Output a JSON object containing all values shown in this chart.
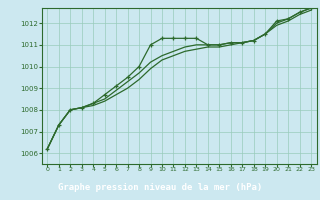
{
  "title": "Graphe pression niveau de la mer (hPa)",
  "bg_color": "#cce8f0",
  "plot_bg_color": "#cce8f0",
  "grid_color": "#99ccbb",
  "line_color": "#2d6a2d",
  "marker_color": "#2d6a2d",
  "title_bg_color": "#2d6a2d",
  "title_text_color": "#ffffff",
  "xlim": [
    -0.5,
    23.5
  ],
  "ylim": [
    1005.5,
    1012.7
  ],
  "xticks": [
    0,
    1,
    2,
    3,
    4,
    5,
    6,
    7,
    8,
    9,
    10,
    11,
    12,
    13,
    14,
    15,
    16,
    17,
    18,
    19,
    20,
    21,
    22,
    23
  ],
  "yticks": [
    1006,
    1007,
    1008,
    1009,
    1010,
    1011,
    1012
  ],
  "series1_x": [
    0,
    1,
    2,
    3,
    4,
    5,
    6,
    7,
    8,
    9,
    10,
    11,
    12,
    13,
    14,
    15,
    16,
    17,
    18,
    19,
    20,
    21,
    22,
    23
  ],
  "series1_y": [
    1006.2,
    1007.3,
    1008.0,
    1008.1,
    1008.3,
    1008.7,
    1009.1,
    1009.5,
    1010.0,
    1011.0,
    1011.3,
    1011.3,
    1011.3,
    1011.3,
    1011.0,
    1011.0,
    1011.1,
    1011.1,
    1011.2,
    1011.5,
    1012.1,
    1012.2,
    1012.5,
    1012.7
  ],
  "series2_x": [
    0,
    1,
    2,
    3,
    4,
    5,
    6,
    7,
    8,
    9,
    10,
    11,
    12,
    13,
    14,
    15,
    16,
    17,
    18,
    19,
    20,
    21,
    22,
    23
  ],
  "series2_y": [
    1006.2,
    1007.3,
    1008.0,
    1008.1,
    1008.3,
    1008.5,
    1008.9,
    1009.3,
    1009.7,
    1010.2,
    1010.5,
    1010.7,
    1010.9,
    1011.0,
    1011.0,
    1011.0,
    1011.1,
    1011.1,
    1011.2,
    1011.5,
    1012.0,
    1012.2,
    1012.5,
    1012.7
  ],
  "series3_x": [
    0,
    1,
    2,
    3,
    4,
    5,
    6,
    7,
    8,
    9,
    10,
    11,
    12,
    13,
    14,
    15,
    16,
    17,
    18,
    19,
    20,
    21,
    22,
    23
  ],
  "series3_y": [
    1006.2,
    1007.3,
    1008.0,
    1008.1,
    1008.2,
    1008.4,
    1008.7,
    1009.0,
    1009.4,
    1009.9,
    1010.3,
    1010.5,
    1010.7,
    1010.8,
    1010.9,
    1010.9,
    1011.0,
    1011.1,
    1011.2,
    1011.5,
    1011.9,
    1012.1,
    1012.4,
    1012.6
  ]
}
